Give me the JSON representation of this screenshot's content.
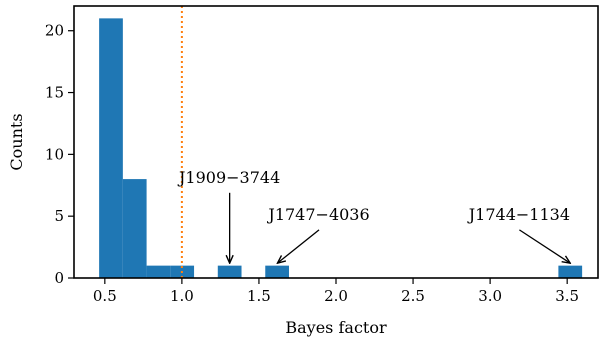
{
  "chart_data": {
    "type": "bar",
    "xlabel": "Bayes factor",
    "ylabel": "Counts",
    "xlim": [
      0.3,
      3.7
    ],
    "ylim": [
      0,
      22
    ],
    "xticks": [
      {
        "value": 0.5,
        "label": "0.5"
      },
      {
        "value": 1.0,
        "label": "1.0"
      },
      {
        "value": 1.5,
        "label": "1.5"
      },
      {
        "value": 2.0,
        "label": "2.0"
      },
      {
        "value": 2.5,
        "label": "2.5"
      },
      {
        "value": 3.0,
        "label": "3.0"
      },
      {
        "value": 3.5,
        "label": "3.5"
      }
    ],
    "yticks": [
      {
        "value": 0,
        "label": "0"
      },
      {
        "value": 5,
        "label": "5"
      },
      {
        "value": 10,
        "label": "10"
      },
      {
        "value": 15,
        "label": "15"
      },
      {
        "value": 20,
        "label": "20"
      }
    ],
    "bins": [
      {
        "x0": 0.463,
        "x1": 0.617,
        "count": 21
      },
      {
        "x0": 0.617,
        "x1": 0.771,
        "count": 8
      },
      {
        "x0": 0.771,
        "x1": 0.925,
        "count": 1
      },
      {
        "x0": 0.925,
        "x1": 1.079,
        "count": 1
      },
      {
        "x0": 1.233,
        "x1": 1.387,
        "count": 1
      },
      {
        "x0": 1.541,
        "x1": 1.695,
        "count": 1
      },
      {
        "x0": 3.443,
        "x1": 3.597,
        "count": 1
      }
    ],
    "reference_line": {
      "x": 1.0,
      "style": "dotted",
      "color": "#ff7f0e"
    },
    "bar_color": "#1f77b4",
    "grid": false,
    "annotations": [
      {
        "text": "J1909−3744",
        "target_x": 1.31,
        "target_y": 1.2,
        "label_x": 1.31,
        "label_y": 7.7
      },
      {
        "text": "J1747−4036",
        "target_x": 1.62,
        "target_y": 1.2,
        "label_x": 1.89,
        "label_y": 4.7
      },
      {
        "text": "J1744−1134",
        "target_x": 3.52,
        "target_y": 1.2,
        "label_x": 3.19,
        "label_y": 4.7
      }
    ]
  }
}
